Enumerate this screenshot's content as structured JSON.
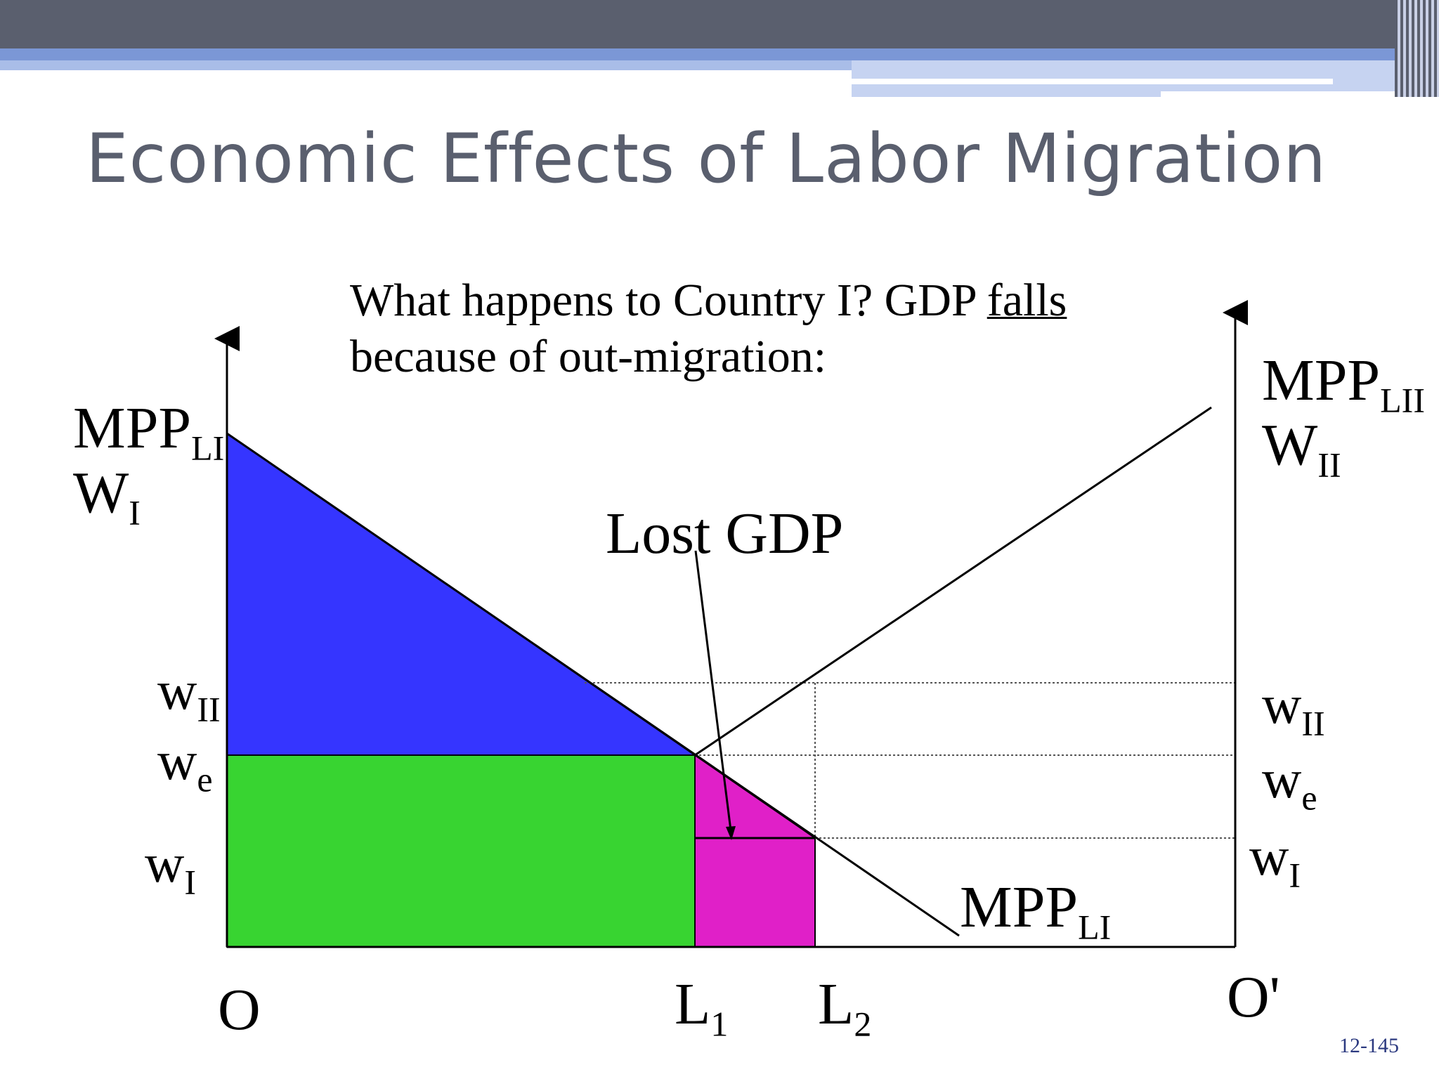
{
  "slide": {
    "title": "Economic Effects of Labor Migration",
    "question_line1": "What happens to Country I?  GDP ",
    "question_emph": "falls",
    "question_line2": "because of out-migration:",
    "page_number": "12-145"
  },
  "diagram": {
    "left_axis": {
      "line1_main": "MPP",
      "line1_sub": "LI",
      "line2_main": "W",
      "line2_sub": "I"
    },
    "right_axis": {
      "line1_main": "MPP",
      "line1_sub": "LII",
      "line2_main": "W",
      "line2_sub": "II"
    },
    "left_wages": [
      {
        "main": "w",
        "sub": "II"
      },
      {
        "main": "w",
        "sub": "e"
      },
      {
        "main": "w",
        "sub": "I"
      }
    ],
    "right_wages": [
      {
        "main": "w",
        "sub": "II"
      },
      {
        "main": "w",
        "sub": "e"
      },
      {
        "main": "w",
        "sub": "I"
      }
    ],
    "origin_left": "O",
    "origin_right": "O'",
    "l1": {
      "main": "L",
      "sub": "1"
    },
    "l2": {
      "main": "L",
      "sub": "2"
    },
    "curve_label": {
      "main": "MPP",
      "sub": "LI"
    },
    "callout": "Lost GDP",
    "colors": {
      "blue_area": "#3535ff",
      "green_area": "#38d431",
      "magenta_area": "#e020c8",
      "title": "#5a5f6e"
    }
  }
}
